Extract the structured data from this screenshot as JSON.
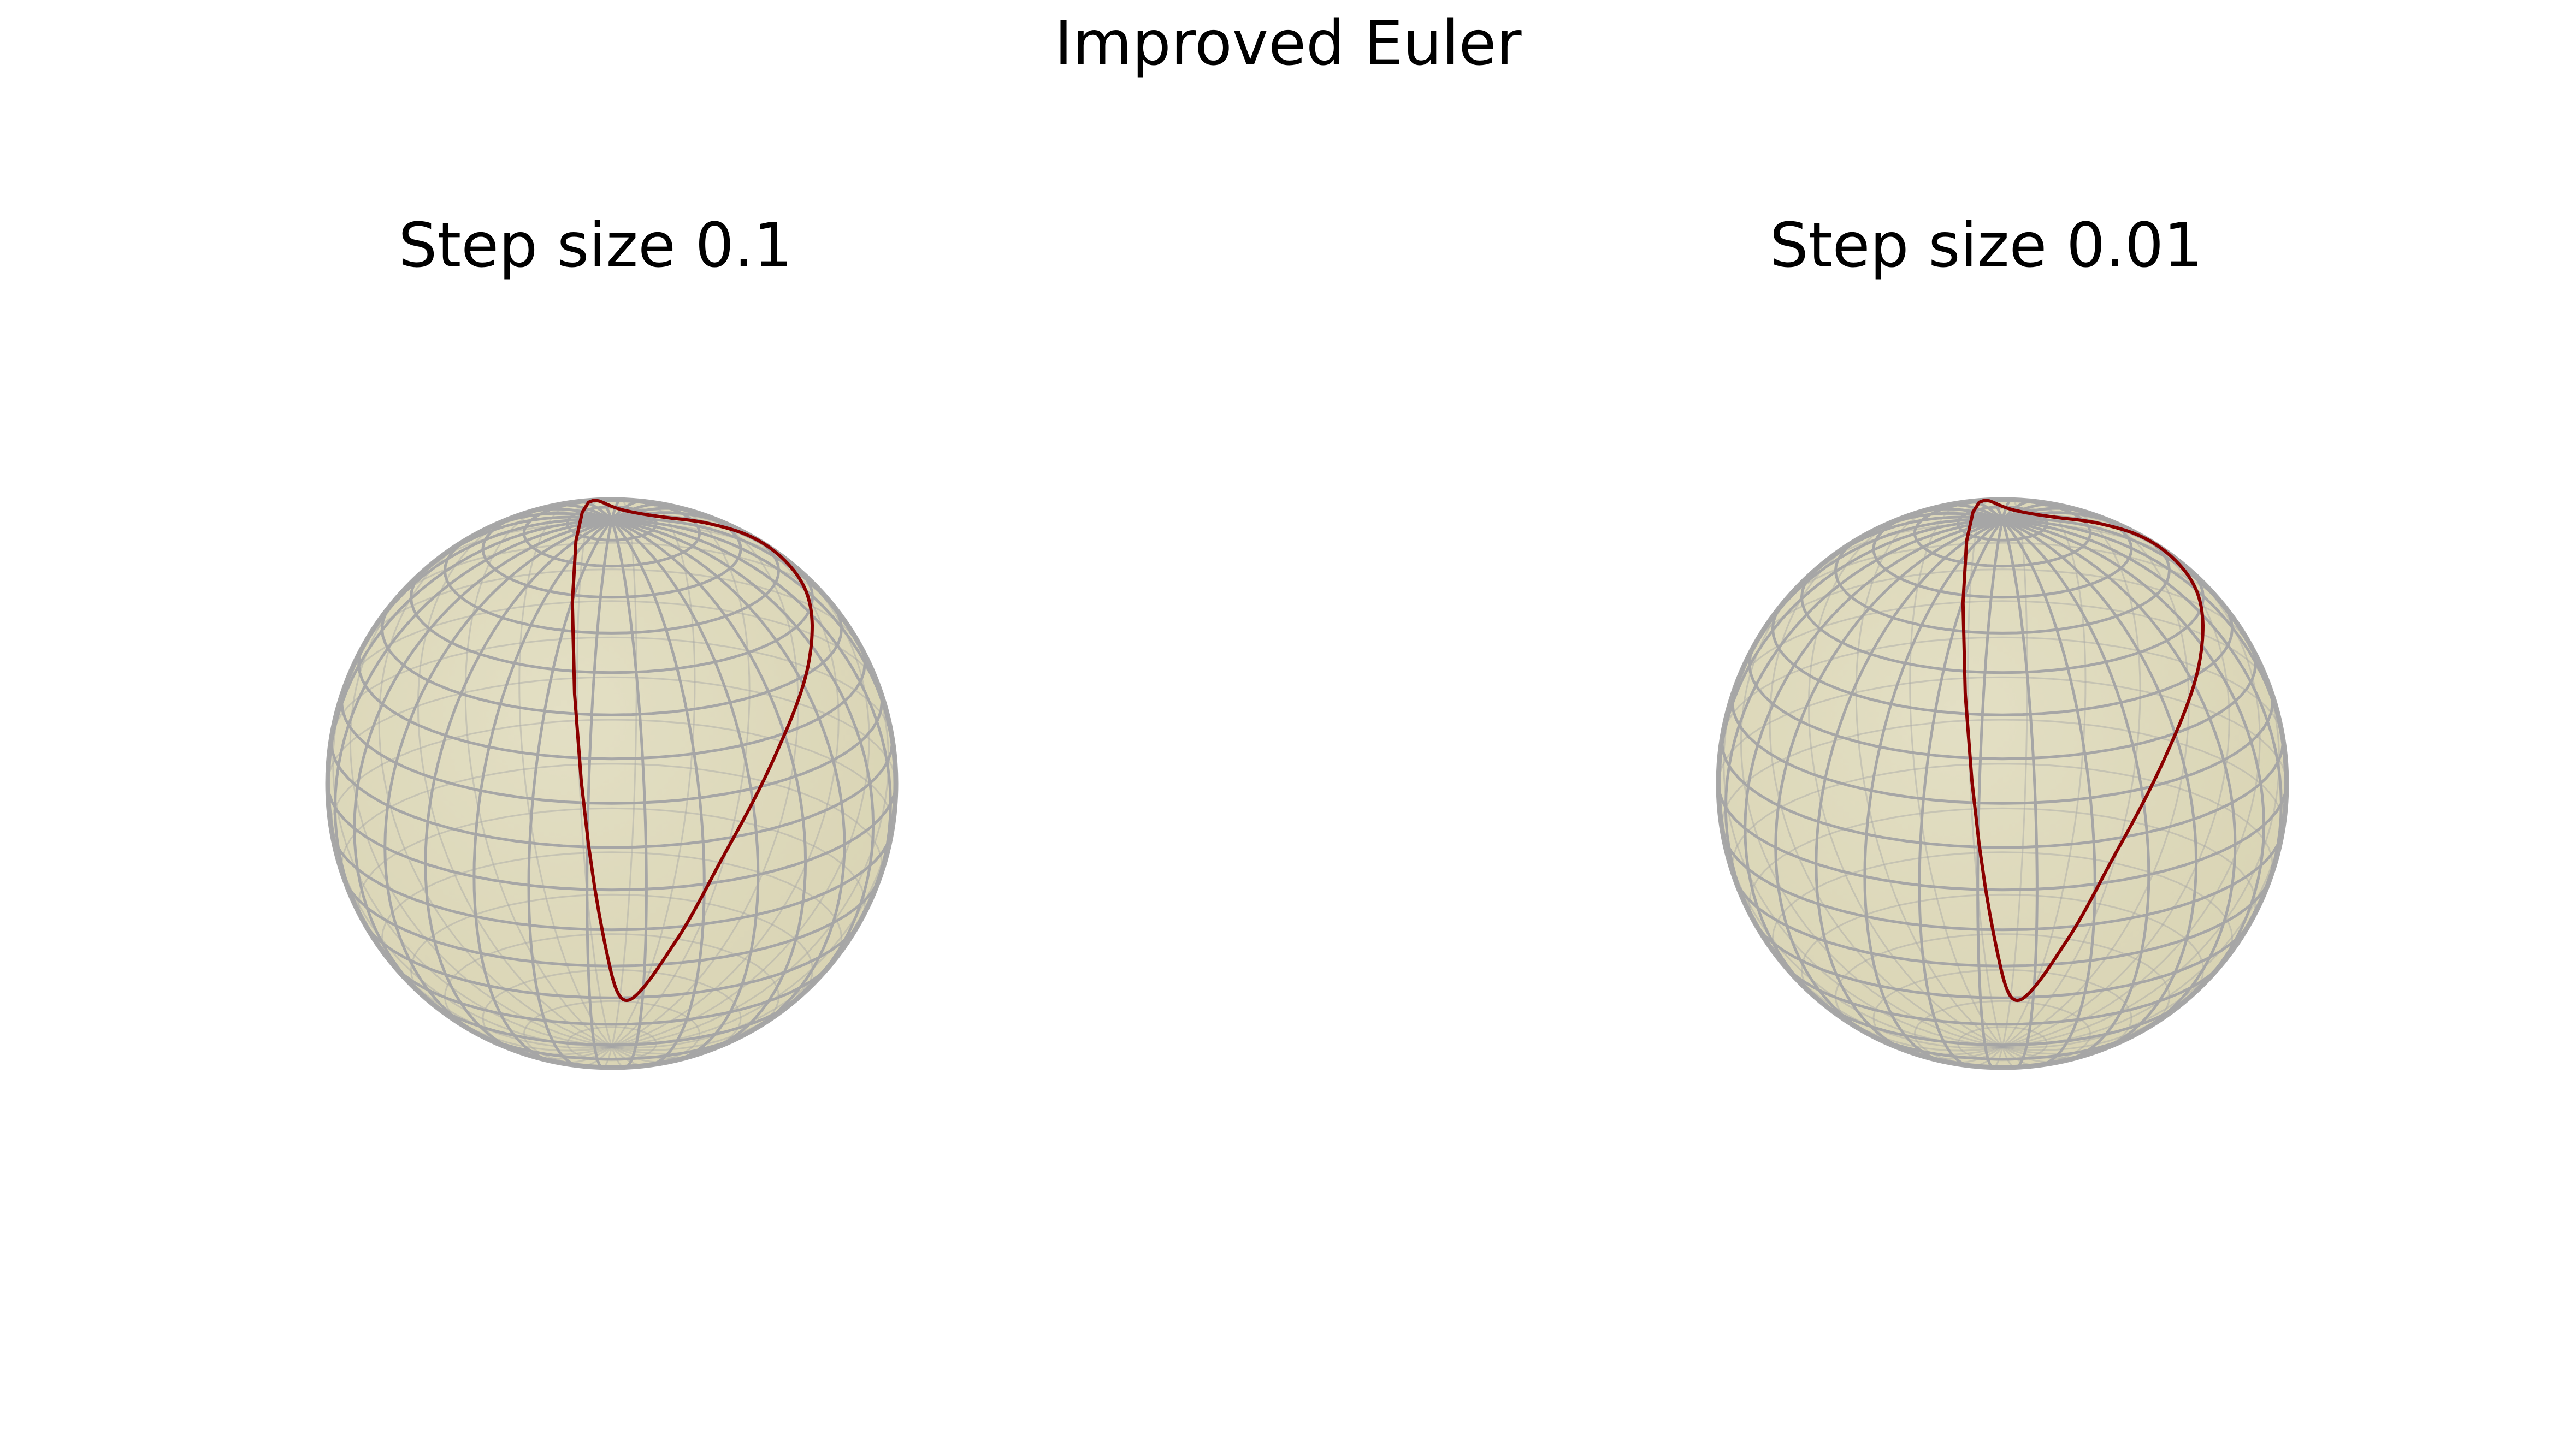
{
  "figure": {
    "title": "Improved Euler"
  },
  "chart_data": [
    {
      "type": "line",
      "subtype": "3d-trajectory-on-unit-sphere",
      "title": "Step size 0.1",
      "step_size": 0.1,
      "sphere": {
        "radius": 1,
        "surface_color": "#d9d4b4",
        "wire_color": "#a6a6a6"
      },
      "trajectory": {
        "color": "#8b0000",
        "points": [
          [
            0.06,
            0.6,
            0.74
          ],
          [
            0.3,
            0.55,
            0.78
          ],
          [
            0.55,
            0.4,
            0.73
          ],
          [
            0.78,
            0.1,
            0.62
          ],
          [
            0.88,
            -0.25,
            0.4
          ],
          [
            0.82,
            -0.5,
            0.1
          ],
          [
            0.62,
            -0.55,
            -0.18
          ],
          [
            0.35,
            -0.42,
            -0.28
          ],
          [
            0.12,
            -0.18,
            -0.05
          ],
          [
            -0.1,
            0.15,
            0.25
          ],
          [
            -0.14,
            0.45,
            0.55
          ],
          [
            -0.05,
            0.58,
            0.7
          ],
          [
            0.06,
            0.6,
            0.74
          ]
        ]
      },
      "axes": "off"
    },
    {
      "type": "line",
      "subtype": "3d-trajectory-on-unit-sphere",
      "title": "Step size 0.01",
      "step_size": 0.01,
      "sphere": {
        "radius": 1,
        "surface_color": "#d9d4b4",
        "wire_color": "#a6a6a6"
      },
      "trajectory": {
        "color": "#8b0000",
        "points": [
          [
            0.06,
            0.6,
            0.74
          ],
          [
            0.3,
            0.55,
            0.78
          ],
          [
            0.55,
            0.4,
            0.73
          ],
          [
            0.78,
            0.1,
            0.62
          ],
          [
            0.88,
            -0.25,
            0.4
          ],
          [
            0.82,
            -0.5,
            0.1
          ],
          [
            0.62,
            -0.55,
            -0.18
          ],
          [
            0.35,
            -0.42,
            -0.28
          ],
          [
            0.12,
            -0.18,
            -0.05
          ],
          [
            -0.1,
            0.15,
            0.25
          ],
          [
            -0.14,
            0.45,
            0.55
          ],
          [
            -0.05,
            0.58,
            0.7
          ],
          [
            0.06,
            0.6,
            0.74
          ]
        ]
      },
      "axes": "off"
    }
  ]
}
